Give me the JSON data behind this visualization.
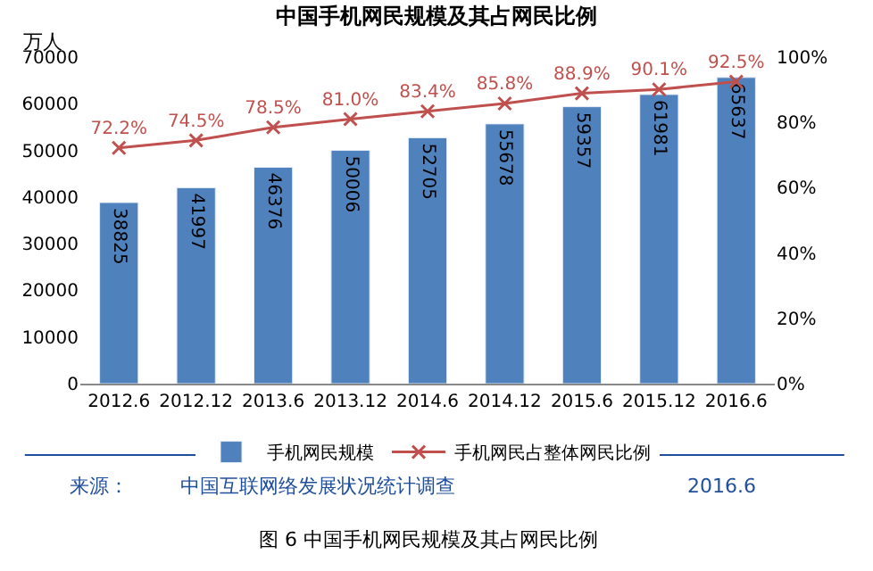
{
  "chart_data": {
    "type": "bar",
    "title": "中国手机网民规模及其占网民比例",
    "ylabel": "万人",
    "categories": [
      "2012.6",
      "2012.12",
      "2013.6",
      "2013.12",
      "2014.6",
      "2014.12",
      "2015.6",
      "2015.12",
      "2016.6"
    ],
    "series": [
      {
        "name": "手机网民规模",
        "color": "#4f81bd",
        "values": [
          38825,
          41997,
          46376,
          50006,
          52705,
          55678,
          59357,
          61981,
          65637
        ],
        "value_labels": [
          "38825",
          "41997",
          "46376",
          "50006",
          "52705",
          "55678",
          "59357",
          "61981",
          "65637"
        ]
      },
      {
        "name": "手机网民占整体网民比例",
        "type": "line",
        "axis": "y2",
        "color": "#c0504d",
        "marker": "cross",
        "values": [
          72.2,
          74.5,
          78.5,
          81.0,
          83.4,
          85.8,
          88.9,
          90.1,
          92.5
        ],
        "value_labels": [
          "72.2%",
          "74.5%",
          "78.5%",
          "81.0%",
          "83.4%",
          "85.8%",
          "88.9%",
          "90.1%",
          "92.5%"
        ]
      }
    ],
    "ylim": [
      0,
      70000
    ],
    "yticks": [
      0,
      10000,
      20000,
      30000,
      40000,
      50000,
      60000,
      70000
    ],
    "y2lim": [
      0,
      100
    ],
    "y2ticks": [
      {
        "value": 0,
        "label": "0%"
      },
      {
        "value": 20,
        "label": "20%"
      },
      {
        "value": 40,
        "label": "40%"
      },
      {
        "value": 60,
        "label": "60%"
      },
      {
        "value": 80,
        "label": "80%"
      },
      {
        "value": 100,
        "label": "100%"
      }
    ],
    "legend": "bottom",
    "grid": false,
    "annotations": [
      "来源：",
      "中国互联网络发展状况统计调查",
      "2016.6",
      "图 6 中国手机网民规模及其占网民比例"
    ]
  }
}
